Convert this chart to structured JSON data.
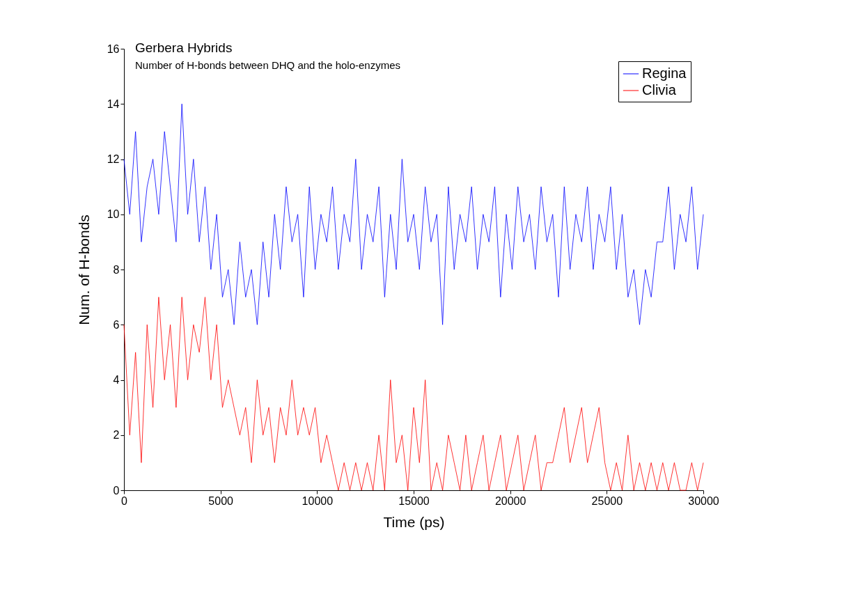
{
  "chart_data": {
    "type": "line",
    "title": "Gerbera Hybrids",
    "subtitle": "Number of H-bonds between DHQ and the holo-enzymes",
    "xlabel": "Time (ps)",
    "ylabel": "Num. of H-bonds",
    "x": [
      0,
      300,
      600,
      900,
      1200,
      1500,
      1800,
      2100,
      2400,
      2700,
      3000,
      3300,
      3600,
      3900,
      4200,
      4500,
      4800,
      5100,
      5400,
      5700,
      6000,
      6300,
      6600,
      6900,
      7200,
      7500,
      7800,
      8100,
      8400,
      8700,
      9000,
      9300,
      9600,
      9900,
      10200,
      10500,
      10800,
      11100,
      11400,
      11700,
      12000,
      12300,
      12600,
      12900,
      13200,
      13500,
      13800,
      14100,
      14400,
      14700,
      15000,
      15300,
      15600,
      15900,
      16200,
      16500,
      16800,
      17100,
      17400,
      17700,
      18000,
      18300,
      18600,
      18900,
      19200,
      19500,
      19800,
      20100,
      20400,
      20700,
      21000,
      21300,
      21600,
      21900,
      22200,
      22500,
      22800,
      23100,
      23400,
      23700,
      24000,
      24300,
      24600,
      24900,
      25200,
      25500,
      25800,
      26100,
      26400,
      26700,
      27000,
      27300,
      27600,
      27900,
      28200,
      28500,
      28800,
      29100,
      29400,
      29700,
      30000
    ],
    "series": [
      {
        "name": "Regina",
        "color": "#0000ff",
        "values": [
          12,
          10,
          13,
          9,
          11,
          12,
          10,
          13,
          11,
          9,
          14,
          10,
          12,
          9,
          11,
          8,
          10,
          7,
          8,
          6,
          9,
          7,
          8,
          6,
          9,
          7,
          10,
          8,
          11,
          9,
          10,
          7,
          11,
          8,
          10,
          9,
          11,
          8,
          10,
          9,
          12,
          8,
          10,
          9,
          11,
          7,
          10,
          8,
          12,
          9,
          10,
          8,
          11,
          9,
          10,
          6,
          11,
          8,
          10,
          9,
          11,
          8,
          10,
          9,
          11,
          7,
          10,
          8,
          11,
          9,
          10,
          8,
          11,
          9,
          10,
          7,
          11,
          8,
          10,
          9,
          11,
          8,
          10,
          9,
          11,
          8,
          10,
          7,
          8,
          6,
          8,
          7,
          9,
          9,
          11,
          8,
          10,
          9,
          11,
          8,
          10
        ]
      },
      {
        "name": "Clivia",
        "color": "#ff0000",
        "values": [
          6,
          2,
          5,
          1,
          6,
          3,
          7,
          4,
          6,
          3,
          7,
          4,
          6,
          5,
          7,
          4,
          6,
          3,
          4,
          3,
          2,
          3,
          1,
          4,
          2,
          3,
          1,
          3,
          2,
          4,
          2,
          3,
          2,
          3,
          1,
          2,
          1,
          0,
          1,
          0,
          1,
          0,
          1,
          0,
          2,
          0,
          4,
          1,
          2,
          0,
          3,
          1,
          4,
          0,
          1,
          0,
          2,
          1,
          0,
          2,
          0,
          1,
          2,
          0,
          1,
          2,
          0,
          1,
          2,
          0,
          1,
          2,
          0,
          1,
          1,
          2,
          3,
          1,
          2,
          3,
          1,
          2,
          3,
          1,
          0,
          1,
          0,
          2,
          0,
          1,
          0,
          1,
          0,
          1,
          0,
          1,
          0,
          0,
          1,
          0,
          1
        ]
      }
    ],
    "xlim": [
      0,
      30000
    ],
    "xticks": [
      0,
      5000,
      10000,
      15000,
      20000,
      25000,
      30000
    ],
    "ylim": [
      0,
      16
    ],
    "yticks": [
      0,
      2,
      4,
      6,
      8,
      10,
      12,
      14,
      16
    ],
    "grid": false,
    "legend": "top right",
    "line_style": "solid"
  }
}
